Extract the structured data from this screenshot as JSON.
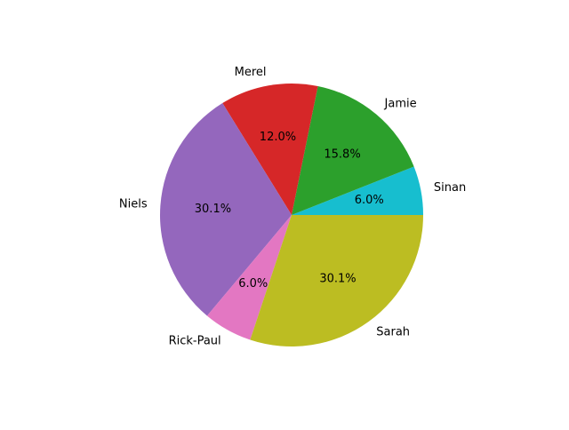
{
  "chart_data": {
    "type": "pie",
    "title": "",
    "categories": [
      "Sinan",
      "Jamie",
      "Merel",
      "Niels",
      "Rick-Paul",
      "Sarah"
    ],
    "values": [
      6.0,
      15.8,
      12.0,
      30.1,
      6.0,
      30.1
    ],
    "value_labels": [
      "6.0%",
      "15.8%",
      "12.0%",
      "30.1%",
      "6.0%",
      "30.1%"
    ],
    "colors": [
      "#17becf",
      "#2ca02c",
      "#d62728",
      "#9467bd",
      "#e377c2",
      "#bcbd22"
    ],
    "start_angle_deg": 0,
    "direction": "counterclockwise",
    "legend": "none"
  }
}
